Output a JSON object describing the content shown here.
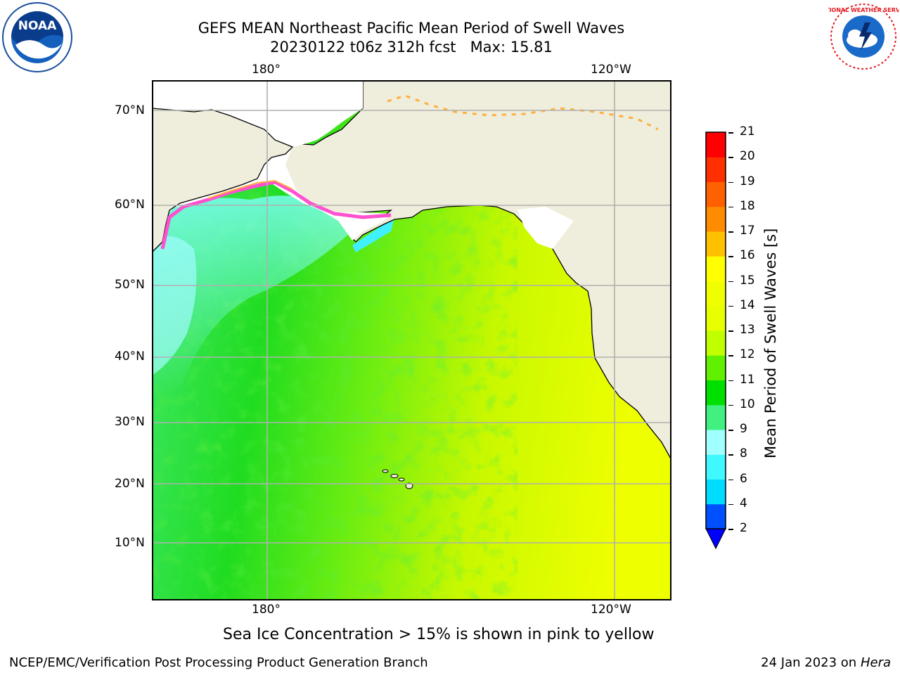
{
  "title_line1": "GEFS MEAN Northeast Pacific Mean Period of Swell Waves",
  "title_line2": "20230122 t06z 312h fcst   Max: 15.81",
  "lon_labels": [
    "180°",
    "120°W"
  ],
  "lat_labels": [
    "70°N",
    "60°N",
    "50°N",
    "40°N",
    "30°N",
    "20°N",
    "10°N"
  ],
  "colorbar": {
    "label": "Mean Period of Swell Waves [s]",
    "ticks": [
      "21",
      "20",
      "19",
      "18",
      "17",
      "16",
      "15",
      "14",
      "13",
      "12",
      "11",
      "10",
      "9",
      "8",
      "6",
      "4",
      "2"
    ],
    "levels": [
      2,
      4,
      6,
      8,
      9,
      10,
      11,
      12,
      13,
      14,
      15,
      16,
      17,
      18,
      19,
      20,
      21
    ],
    "colors": [
      "#0050ff",
      "#00dcff",
      "#40f8ff",
      "#a0ffff",
      "#40f080",
      "#00e000",
      "#60f000",
      "#c0ff00",
      "#e8ff00",
      "#f0ff00",
      "#ffff00",
      "#ffc000",
      "#ff8c00",
      "#ff6000",
      "#ff3000",
      "#ff0000"
    ],
    "under_color": "#0000ff",
    "extend": "min"
  },
  "caption": "Sea Ice Concentration > 15% is shown in pink to yellow",
  "footer_left": "NCEP/EMC/Verification Post Processing Product Generation Branch",
  "footer_right_date": "24 Jan 2023 on ",
  "footer_right_host": "Hera",
  "logos": {
    "left": "NOAA",
    "right": "NATIONAL WEATHER SERVICE"
  },
  "colors": {
    "land": "#efeddb",
    "grid": "#b0b0b0",
    "coast": "#000000"
  }
}
